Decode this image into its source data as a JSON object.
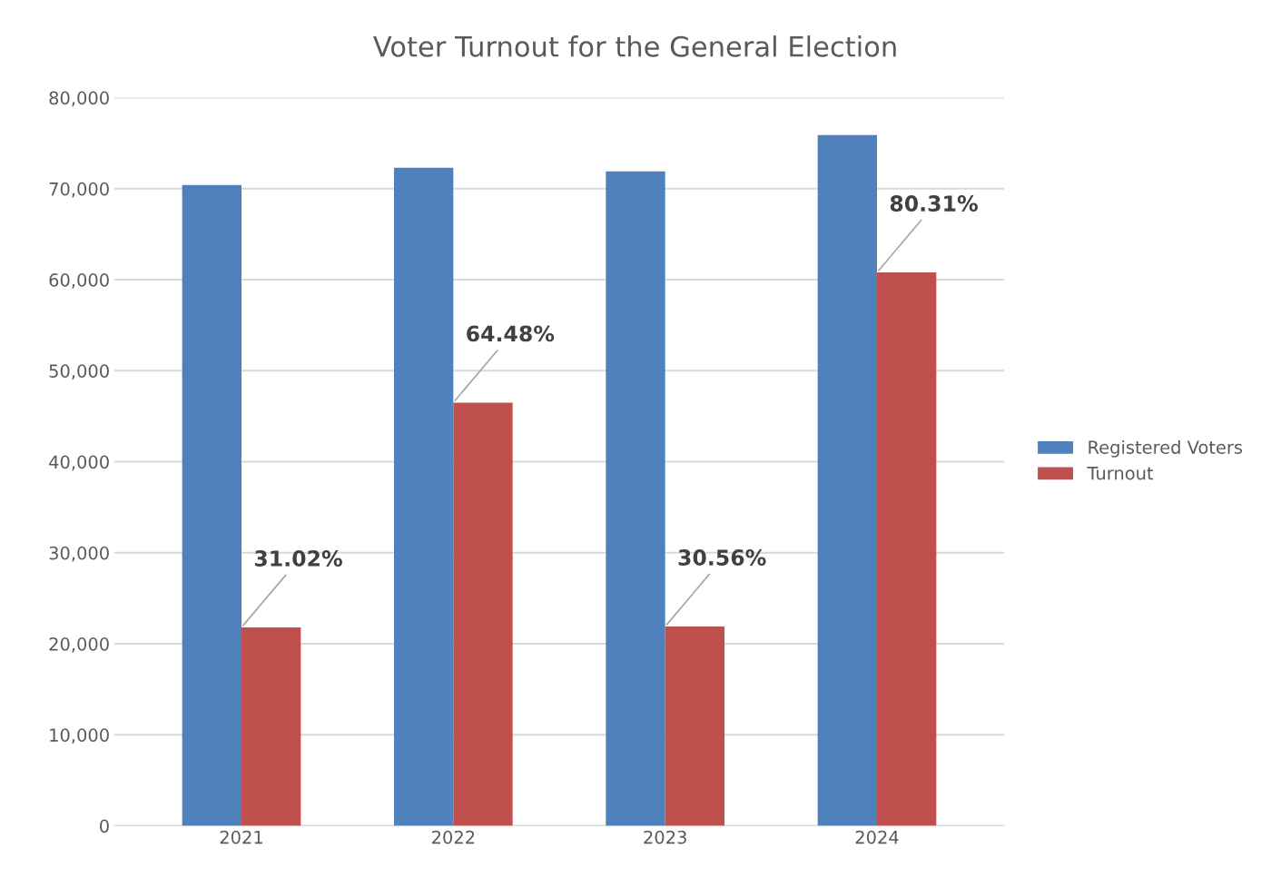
{
  "chart_data": {
    "type": "bar",
    "title": "Voter Turnout for the General Election",
    "categories": [
      "2021",
      "2022",
      "2023",
      "2024"
    ],
    "series": [
      {
        "name": "Registered Voters",
        "color": "#4f81bd",
        "values": [
          70400,
          72300,
          71900,
          75900
        ]
      },
      {
        "name": "Turnout",
        "color": "#c0504d",
        "values": [
          21800,
          46500,
          21900,
          60800
        ]
      }
    ],
    "annotations": [
      {
        "text": "31.02%",
        "x": "2021",
        "y": 21800
      },
      {
        "text": "64.48%",
        "x": "2022",
        "y": 46500
      },
      {
        "text": "30.56%",
        "x": "2023",
        "y": 21900
      },
      {
        "text": "80.31%",
        "x": "2024",
        "y": 60800
      }
    ],
    "ylim": [
      0,
      80000
    ],
    "yticks": [
      {
        "value": 0,
        "label": "0"
      },
      {
        "value": 10000,
        "label": "10,000"
      },
      {
        "value": 20000,
        "label": "20,000"
      },
      {
        "value": 30000,
        "label": "30,000"
      },
      {
        "value": 40000,
        "label": "40,000"
      },
      {
        "value": 50000,
        "label": "50,000"
      },
      {
        "value": 60000,
        "label": "60,000"
      },
      {
        "value": 70000,
        "label": "70,000"
      },
      {
        "value": 80000,
        "label": "80,000"
      }
    ],
    "grid": "y",
    "legend": "right"
  }
}
